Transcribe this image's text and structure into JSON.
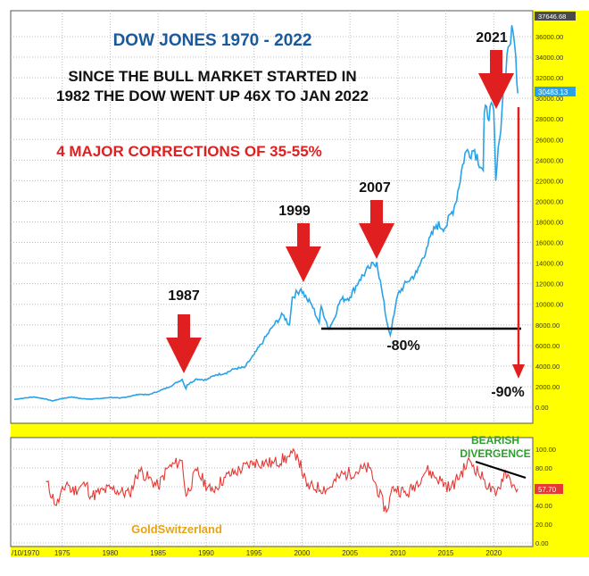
{
  "chart_data": [
    {
      "type": "line",
      "title": "DOW JONES 1970 - 2022",
      "subtitle_line1": "SINCE THE BULL MARKET STARTED IN",
      "subtitle_line2": "1982 THE DOW WENT UP 46X TO JAN 2022",
      "highlight": "4 MAJOR CORRECTIONS OF 35-55%",
      "ylim": [
        0,
        38000
      ],
      "yticks": [
        "0.00",
        "2000.00",
        "4000.00",
        "6000.00",
        "8000.00",
        "10000.00",
        "12000.00",
        "14000.00",
        "16000.00",
        "18000.00",
        "20000.00",
        "22000.00",
        "24000.00",
        "26000.00",
        "28000.00",
        "30000.00",
        "32000.00",
        "34000.00",
        "36000.00"
      ],
      "last_value_label": "30483.13",
      "top_value_label": "37646.68",
      "grid": true,
      "annotations": [
        {
          "text": "1987",
          "x": 1987.7,
          "y": 2700
        },
        {
          "text": "1999",
          "x": 2000,
          "y": 11700
        },
        {
          "text": "2007",
          "x": 2007.8,
          "y": 14100
        },
        {
          "text": "2021",
          "x": 2021.5,
          "y": 29000
        },
        {
          "text": "-80%",
          "x": 2009,
          "y": 7800
        },
        {
          "text": "-90%",
          "x": 2021,
          "y": 3400
        }
      ],
      "series": [
        {
          "color": "#29a3e6",
          "x": [
            1970,
            1971,
            1972,
            1973,
            1974,
            1975,
            1976,
            1977,
            1978,
            1979,
            1980,
            1981,
            1982,
            1983,
            1984,
            1985,
            1986,
            1987.5,
            1987.9,
            1988,
            1989,
            1990,
            1991,
            1992,
            1993,
            1994,
            1995,
            1996,
            1997,
            1998,
            1998.7,
            1999,
            1999.9,
            2000.5,
            2001,
            2001.8,
            2002,
            2002.8,
            2003.2,
            2004,
            2005,
            2006,
            2007,
            2007.8,
            2008.3,
            2008.8,
            2009.2,
            2009.6,
            2010,
            2011,
            2012,
            2013,
            2014,
            2015,
            2016,
            2017,
            2018,
            2018.9,
            2019,
            2020,
            2020.2,
            2020.6,
            2021,
            2021.5,
            2022,
            2022.3,
            2022.5
          ],
          "values": [
            760,
            880,
            1000,
            850,
            620,
            850,
            1000,
            830,
            800,
            840,
            960,
            880,
            1050,
            1260,
            1210,
            1550,
            1900,
            2700,
            1800,
            2150,
            2750,
            2650,
            3150,
            3300,
            3750,
            3850,
            5100,
            6500,
            7900,
            9000,
            8000,
            10700,
            11500,
            10500,
            10000,
            8200,
            9800,
            7600,
            8300,
            10400,
            10700,
            12400,
            13500,
            14100,
            11500,
            8500,
            7000,
            9000,
            11000,
            12200,
            13100,
            15500,
            17700,
            17500,
            19800,
            24700,
            25000,
            23000,
            28500,
            28800,
            22000,
            26000,
            31000,
            35000,
            36500,
            34000,
            30483
          ]
        }
      ]
    },
    {
      "type": "line",
      "title": "",
      "ylim": [
        0,
        100
      ],
      "yticks": [
        "0.00",
        "20.00",
        "40.00",
        "60.00",
        "80.00",
        "100.00"
      ],
      "last_value_label": "57.70",
      "divergence_label_1": "BEARISH",
      "divergence_label_2": "DIVERGENCE",
      "watermark": "GoldSwitzerland",
      "xticks": [
        "/10/1970",
        "1975",
        "1980",
        "1985",
        "1990",
        "1995",
        "2000",
        "2005",
        "2010",
        "2015",
        "2020"
      ],
      "grid": true,
      "series": [
        {
          "color": "#e53935",
          "x": [
            1973.3,
            1974.4,
            1975.5,
            1976,
            1977.5,
            1978,
            1980,
            1982,
            1983,
            1985,
            1986,
            1987.5,
            1987.9,
            1989,
            1990.5,
            1992,
            1995,
            1997,
            1998.7,
            1999.5,
            2000.5,
            2002.8,
            2004,
            2007,
            2008.8,
            2009.5,
            2011,
            2013,
            2015.5,
            2017.5,
            2018.9,
            2020.2,
            2021.2,
            2022,
            2022.5
          ],
          "values": [
            66,
            40,
            65,
            55,
            63,
            50,
            58,
            52,
            78,
            60,
            80,
            88,
            50,
            77,
            55,
            70,
            86,
            85,
            92,
            95,
            60,
            58,
            72,
            80,
            33,
            60,
            52,
            78,
            58,
            88,
            68,
            50,
            77,
            62,
            57.7
          ]
        }
      ]
    }
  ]
}
